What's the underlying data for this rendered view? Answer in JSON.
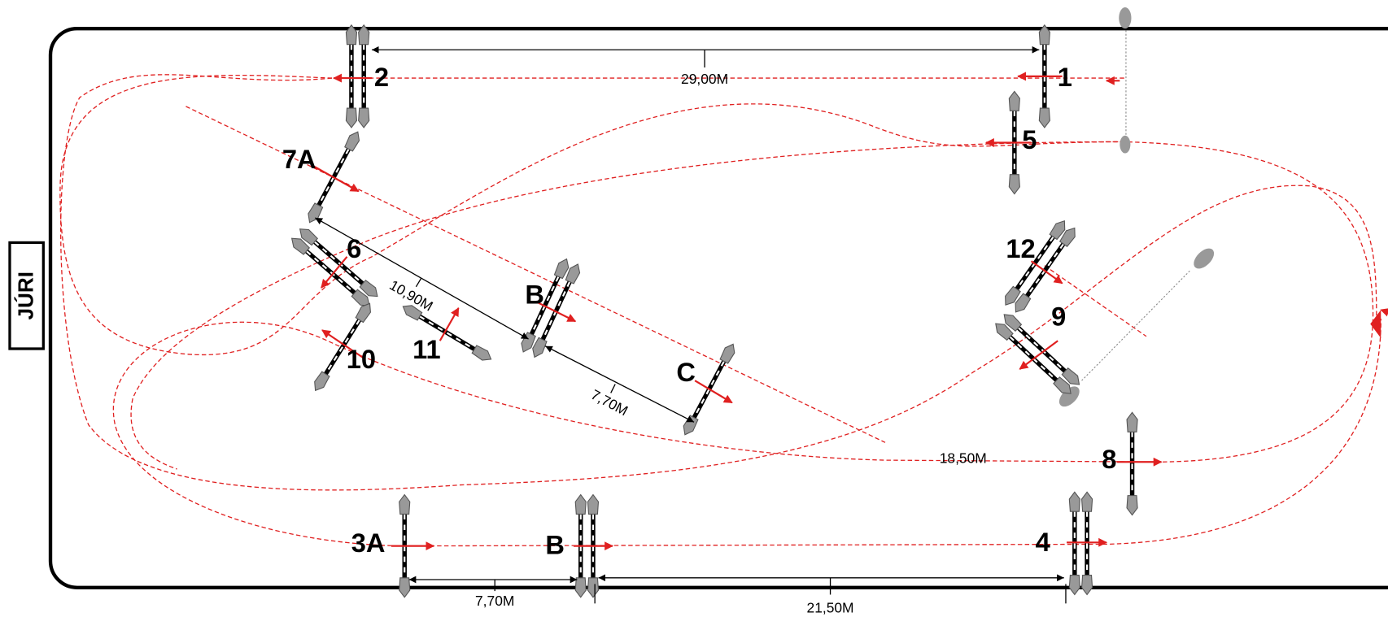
{
  "jury": "JÚRI",
  "fences": [
    "1",
    "2",
    "3A",
    "B",
    "4",
    "5",
    "6",
    "7A",
    "B",
    "C",
    "8",
    "9",
    "10",
    "11",
    "12"
  ],
  "distances": [
    "29,00M",
    "10,90M",
    "7,70M",
    "7,70M",
    "21,50M",
    "18,50M"
  ]
}
